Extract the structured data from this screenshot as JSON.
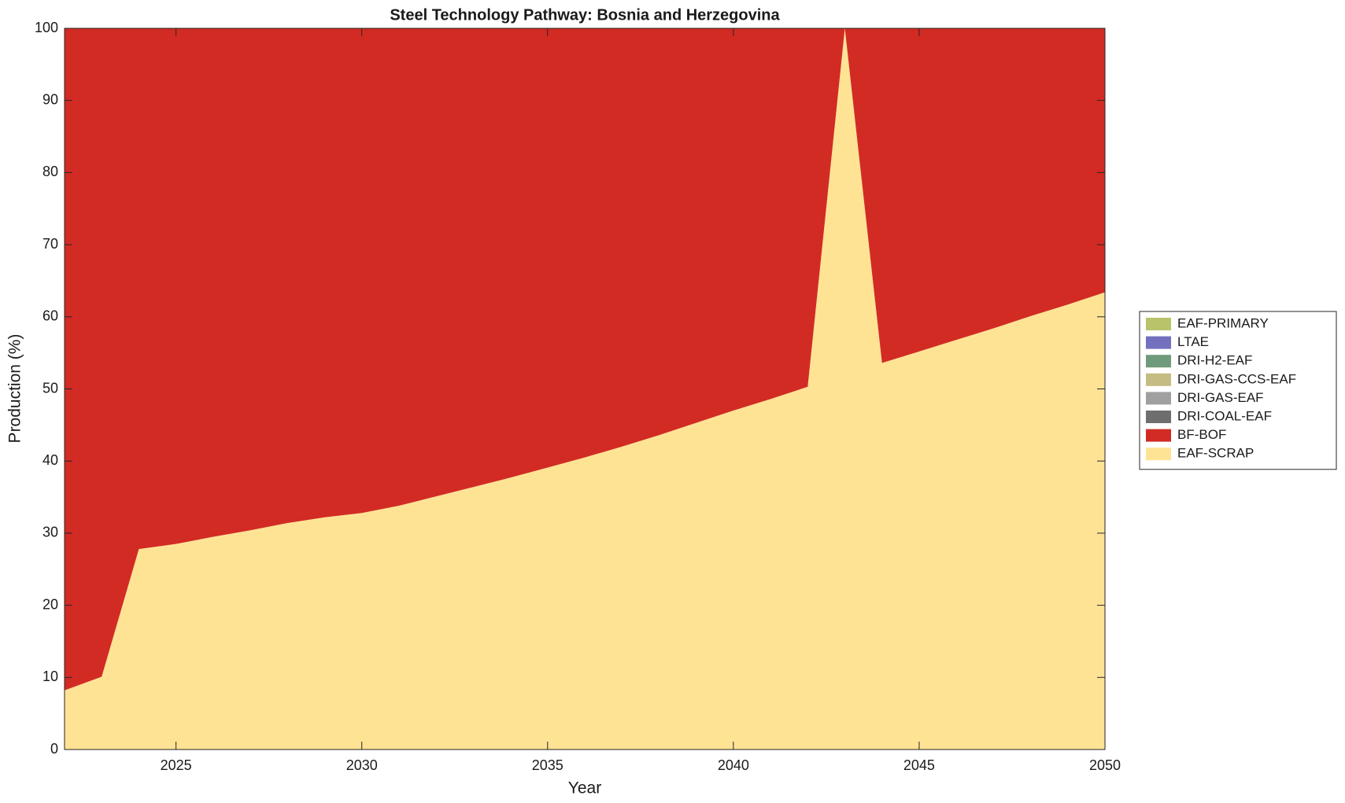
{
  "chart_data": {
    "type": "stacked-area",
    "title": "Steel Technology Pathway: Bosnia and Herzegovina",
    "xlabel": "Year",
    "ylabel": "Production (%)",
    "x": [
      2022,
      2023,
      2024,
      2025,
      2026,
      2027,
      2028,
      2029,
      2030,
      2031,
      2032,
      2033,
      2034,
      2035,
      2036,
      2037,
      2038,
      2039,
      2040,
      2041,
      2042,
      2043,
      2044,
      2045,
      2046,
      2047,
      2048,
      2049,
      2050
    ],
    "series": [
      {
        "name": "EAF-SCRAP",
        "color": "#fee394",
        "values": [
          8.2,
          10.1,
          27.8,
          28.5,
          29.5,
          30.4,
          31.4,
          32.2,
          32.8,
          33.8,
          35.1,
          36.4,
          37.7,
          39.1,
          40.5,
          42.0,
          43.6,
          45.3,
          47.0,
          48.6,
          50.3,
          100,
          53.6,
          55.2,
          56.8,
          58.4,
          60.1,
          61.7,
          63.4
        ]
      },
      {
        "name": "BF-BOF",
        "color": "#d22b24",
        "values": [
          91.8,
          89.9,
          72.2,
          71.5,
          70.5,
          69.6,
          68.6,
          67.8,
          67.2,
          66.2,
          64.9,
          63.6,
          62.3,
          60.9,
          59.5,
          58.0,
          56.4,
          54.7,
          53.0,
          51.4,
          49.7,
          0,
          46.4,
          44.8,
          43.2,
          41.6,
          39.9,
          38.3,
          36.6
        ]
      },
      {
        "name": "DRI-COAL-EAF",
        "color": "#6e6e6e",
        "values": [
          0,
          0,
          0,
          0,
          0,
          0,
          0,
          0,
          0,
          0,
          0,
          0,
          0,
          0,
          0,
          0,
          0,
          0,
          0,
          0,
          0,
          0,
          0,
          0,
          0,
          0,
          0,
          0,
          0
        ]
      },
      {
        "name": "DRI-GAS-EAF",
        "color": "#a0a0a0",
        "values": [
          0,
          0,
          0,
          0,
          0,
          0,
          0,
          0,
          0,
          0,
          0,
          0,
          0,
          0,
          0,
          0,
          0,
          0,
          0,
          0,
          0,
          0,
          0,
          0,
          0,
          0,
          0,
          0,
          0
        ]
      },
      {
        "name": "DRI-GAS-CCS-EAF",
        "color": "#c4bc82",
        "values": [
          0,
          0,
          0,
          0,
          0,
          0,
          0,
          0,
          0,
          0,
          0,
          0,
          0,
          0,
          0,
          0,
          0,
          0,
          0,
          0,
          0,
          0,
          0,
          0,
          0,
          0,
          0,
          0,
          0
        ]
      },
      {
        "name": "DRI-H2-EAF",
        "color": "#6f9a7b",
        "values": [
          0,
          0,
          0,
          0,
          0,
          0,
          0,
          0,
          0,
          0,
          0,
          0,
          0,
          0,
          0,
          0,
          0,
          0,
          0,
          0,
          0,
          0,
          0,
          0,
          0,
          0,
          0,
          0,
          0
        ]
      },
      {
        "name": "LTAE",
        "color": "#7470c0",
        "values": [
          0,
          0,
          0,
          0,
          0,
          0,
          0,
          0,
          0,
          0,
          0,
          0,
          0,
          0,
          0,
          0,
          0,
          0,
          0,
          0,
          0,
          0,
          0,
          0,
          0,
          0,
          0,
          0,
          0
        ]
      },
      {
        "name": "EAF-PRIMARY",
        "color": "#b8c36a",
        "values": [
          0,
          0,
          0,
          0,
          0,
          0,
          0,
          0,
          0,
          0,
          0,
          0,
          0,
          0,
          0,
          0,
          0,
          0,
          0,
          0,
          0,
          0,
          0,
          0,
          0,
          0,
          0,
          0,
          0
        ]
      }
    ],
    "xlim": [
      2022,
      2050
    ],
    "xticks": [
      2025,
      2030,
      2035,
      2040,
      2045,
      2050
    ],
    "ylim": [
      0,
      100
    ],
    "yticks": [
      0,
      10,
      20,
      30,
      40,
      50,
      60,
      70,
      80,
      90,
      100
    ],
    "legend": "right"
  }
}
